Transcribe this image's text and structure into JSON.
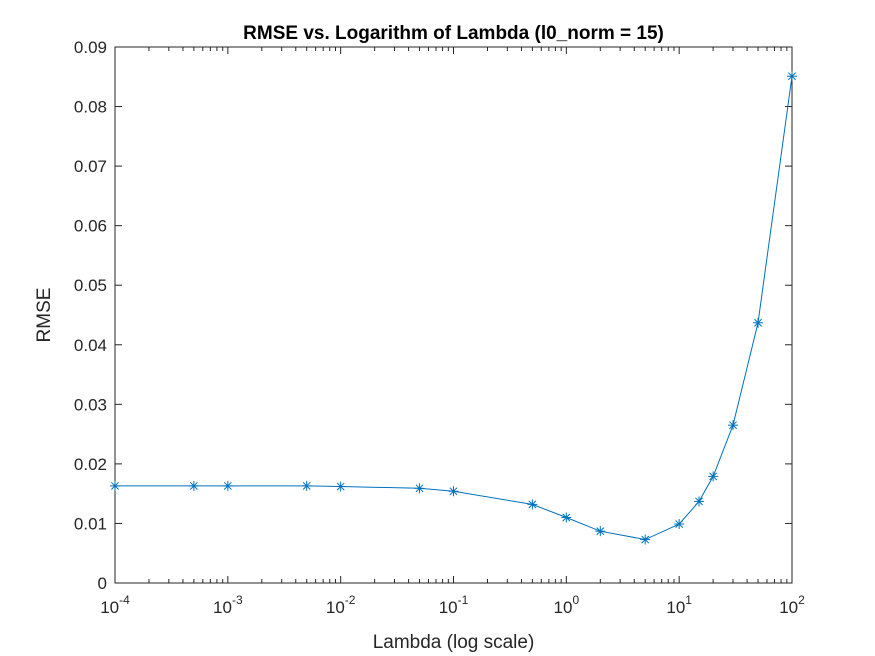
{
  "chart_data": {
    "type": "line",
    "title": "RMSE vs. Logarithm of Lambda (l0_norm = 15)",
    "xlabel": "Lambda (log scale)",
    "ylabel": "RMSE",
    "xscale": "log",
    "xlim": [
      0.0001,
      100
    ],
    "ylim": [
      0,
      0.09
    ],
    "grid": false,
    "box": true,
    "marker": "asterisk",
    "line_color": "#0072BD",
    "axis_color": "#262626",
    "x_ticks": [
      {
        "base": "10",
        "exp": "-4"
      },
      {
        "base": "10",
        "exp": "-3"
      },
      {
        "base": "10",
        "exp": "-2"
      },
      {
        "base": "10",
        "exp": "-1"
      },
      {
        "base": "10",
        "exp": "0"
      },
      {
        "base": "10",
        "exp": "1"
      },
      {
        "base": "10",
        "exp": "2"
      }
    ],
    "y_ticks": [
      "0",
      "0.01",
      "0.02",
      "0.03",
      "0.04",
      "0.05",
      "0.06",
      "0.07",
      "0.08",
      "0.09"
    ],
    "series": [
      {
        "x": [
          0.0001,
          0.0005,
          0.001,
          0.005,
          0.01,
          0.05,
          0.1,
          0.5,
          1,
          2,
          5,
          10,
          15,
          20,
          30,
          50,
          100
        ],
        "y": [
          0.0163,
          0.0163,
          0.0163,
          0.0163,
          0.0162,
          0.0159,
          0.0154,
          0.0132,
          0.011,
          0.0087,
          0.0073,
          0.0099,
          0.0137,
          0.0179,
          0.0265,
          0.0437,
          0.0851
        ]
      }
    ]
  }
}
